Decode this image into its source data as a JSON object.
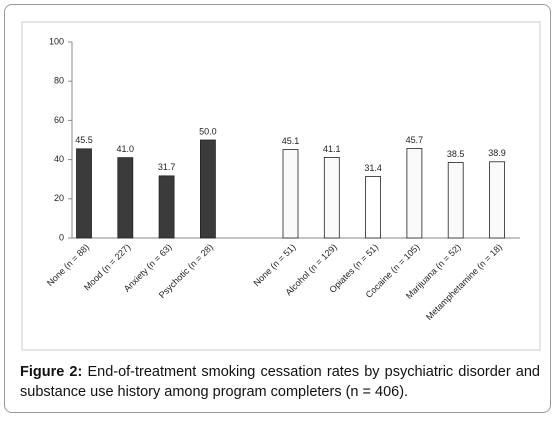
{
  "chart_data": {
    "type": "bar",
    "categories": [
      "None (n = 88)",
      "Mood (n = 227)",
      "Anxiety (n = 63)",
      "Psychotic (n = 28)",
      null,
      "None (n = 51)",
      "Alcohol (n = 129)",
      "Opiates (n = 51)",
      "Cocaine (n = 105)",
      "Marijuana (n = 52)",
      "Metamphetamine (n = 18)"
    ],
    "values": [
      45.5,
      41.0,
      31.7,
      50.0,
      null,
      45.1,
      41.1,
      31.4,
      45.7,
      38.5,
      38.9
    ],
    "value_labels": [
      "45.5",
      "41.0",
      "31.7",
      "50.0",
      null,
      "45.1",
      "41.1",
      "31.4",
      "45.7",
      "38.5",
      "38.9"
    ],
    "colors": [
      "#3b3b3b",
      "#3b3b3b",
      "#3b3b3b",
      "#3b3b3b",
      null,
      "#fafafa",
      "#fafafa",
      "#ffffff",
      "#fafafa",
      "#fafafa",
      "#fafafa"
    ],
    "ylim": [
      0,
      100
    ],
    "yticks": [
      0,
      20,
      40,
      60,
      80,
      100
    ]
  },
  "figure": {
    "label": "Figure 2:",
    "caption": "End-of-treatment smoking cessation rates by psychiatric disorder and substance use history among program completers (n = 406)."
  }
}
